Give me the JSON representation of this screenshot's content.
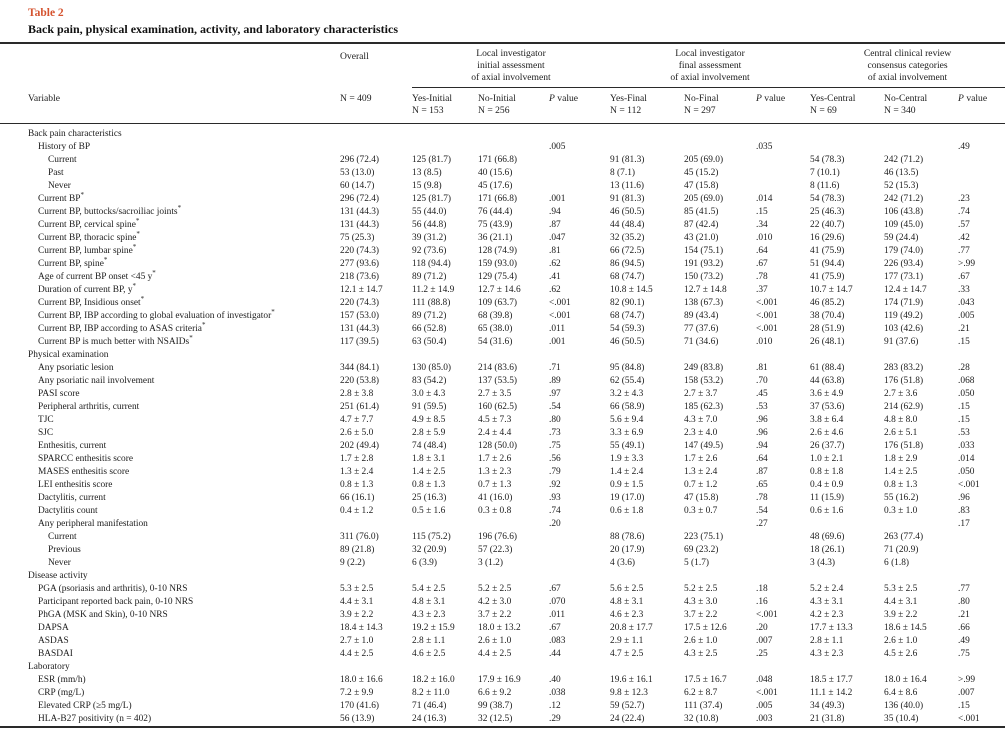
{
  "table": {
    "label": "Table 2",
    "title": "Back pain, physical examination, activity, and laboratory characteristics",
    "accent_color": "#d5532f",
    "variable_label": "Variable",
    "overall": {
      "title": "Overall",
      "n": "N = 409"
    },
    "p_header": {
      "italic": "P",
      "rest": "value"
    },
    "groups": [
      {
        "lines": [
          "Local investigator",
          "initial assessment",
          "of axial involvement"
        ],
        "cols": [
          {
            "name": "Yes-Initial",
            "n": "N = 153"
          },
          {
            "name": "No-Initial",
            "n": "N = 256"
          }
        ]
      },
      {
        "lines": [
          "Local investigator",
          "final assessment",
          "of axial involvement"
        ],
        "cols": [
          {
            "name": "Yes-Final",
            "n": "N = 112"
          },
          {
            "name": "No-Final",
            "n": "N = 297"
          }
        ]
      },
      {
        "lines": [
          "Central clinical review",
          "consensus categories",
          "of axial involvement"
        ],
        "cols": [
          {
            "name": "Yes-Central",
            "n": "N = 69"
          },
          {
            "name": "No-Central",
            "n": "N = 340"
          }
        ]
      }
    ],
    "rows": [
      {
        "label": "Back pain characteristics",
        "indent": 0,
        "cells": [
          "",
          "",
          "",
          "",
          "",
          "",
          "",
          "",
          "",
          ""
        ]
      },
      {
        "label": "History of BP",
        "indent": 1,
        "cells": [
          "",
          "",
          "",
          ".005",
          "",
          "",
          ".035",
          "",
          "",
          ".49"
        ]
      },
      {
        "label": "Current",
        "indent": 2,
        "cells": [
          "296 (72.4)",
          "125 (81.7)",
          "171 (66.8)",
          "",
          "91 (81.3)",
          "205 (69.0)",
          "",
          "54 (78.3)",
          "242 (71.2)",
          ""
        ]
      },
      {
        "label": "Past",
        "indent": 2,
        "cells": [
          "53 (13.0)",
          "13 (8.5)",
          "40 (15.6)",
          "",
          "8 (7.1)",
          "45 (15.2)",
          "",
          "7 (10.1)",
          "46 (13.5)",
          ""
        ]
      },
      {
        "label": "Never",
        "indent": 2,
        "cells": [
          "60 (14.7)",
          "15 (9.8)",
          "45 (17.6)",
          "",
          "13 (11.6)",
          "47 (15.8)",
          "",
          "8 (11.6)",
          "52 (15.3)",
          ""
        ]
      },
      {
        "label": "Current BP",
        "sup": "*",
        "indent": 1,
        "cells": [
          "296 (72.4)",
          "125 (81.7)",
          "171 (66.8)",
          ".001",
          "91 (81.3)",
          "205 (69.0)",
          ".014",
          "54 (78.3)",
          "242 (71.2)",
          ".23"
        ]
      },
      {
        "label": "Current BP, buttocks/sacroiliac joints",
        "sup": "*",
        "indent": 1,
        "cells": [
          "131 (44.3)",
          "55 (44.0)",
          "76 (44.4)",
          ".94",
          "46 (50.5)",
          "85 (41.5)",
          ".15",
          "25 (46.3)",
          "106 (43.8)",
          ".74"
        ]
      },
      {
        "label": "Current BP, cervical spine",
        "sup": "*",
        "indent": 1,
        "cells": [
          "131 (44.3)",
          "56 (44.8)",
          "75 (43.9)",
          ".87",
          "44 (48.4)",
          "87 (42.4)",
          ".34",
          "22 (40.7)",
          "109 (45.0)",
          ".57"
        ]
      },
      {
        "label": "Current BP, thoracic spine",
        "sup": "*",
        "indent": 1,
        "cells": [
          "75 (25.3)",
          "39 (31.2)",
          "36 (21.1)",
          ".047",
          "32 (35.2)",
          "43 (21.0)",
          ".010",
          "16 (29.6)",
          "59 (24.4)",
          ".42"
        ]
      },
      {
        "label": "Current BP, lumbar spine",
        "sup": "*",
        "indent": 1,
        "cells": [
          "220 (74.3)",
          "92 (73.6)",
          "128 (74.9)",
          ".81",
          "66 (72.5)",
          "154 (75.1)",
          ".64",
          "41 (75.9)",
          "179 (74.0)",
          ".77"
        ]
      },
      {
        "label": "Current BP, spine",
        "sup": "*",
        "indent": 1,
        "cells": [
          "277 (93.6)",
          "118 (94.4)",
          "159 (93.0)",
          ".62",
          "86 (94.5)",
          "191 (93.2)",
          ".67",
          "51 (94.4)",
          "226 (93.4)",
          ">.99"
        ]
      },
      {
        "label": "Age of current BP onset <45 y",
        "sup": "*",
        "indent": 1,
        "cells": [
          "218 (73.6)",
          "89 (71.2)",
          "129 (75.4)",
          ".41",
          "68 (74.7)",
          "150 (73.2)",
          ".78",
          "41 (75.9)",
          "177 (73.1)",
          ".67"
        ]
      },
      {
        "label": "Duration of current BP, y",
        "sup": "*",
        "indent": 1,
        "cells": [
          "12.1 ± 14.7",
          "11.2 ± 14.9",
          "12.7 ± 14.6",
          ".62",
          "10.8 ± 14.5",
          "12.7 ± 14.8",
          ".37",
          "10.7 ± 14.7",
          "12.4 ± 14.7",
          ".33"
        ]
      },
      {
        "label": "Current BP, Insidious onset",
        "sup": "*",
        "indent": 1,
        "cells": [
          "220 (74.3)",
          "111 (88.8)",
          "109 (63.7)",
          "<.001",
          "82 (90.1)",
          "138 (67.3)",
          "<.001",
          "46 (85.2)",
          "174 (71.9)",
          ".043"
        ]
      },
      {
        "label": "Current BP, IBP according to global evaluation of investigator",
        "sup": "*",
        "indent": 1,
        "cells": [
          "157 (53.0)",
          "89 (71.2)",
          "68 (39.8)",
          "<.001",
          "68 (74.7)",
          "89 (43.4)",
          "<.001",
          "38 (70.4)",
          "119 (49.2)",
          ".005"
        ]
      },
      {
        "label": "Current BP, IBP according to ASAS criteria",
        "sup": "*",
        "indent": 1,
        "cells": [
          "131 (44.3)",
          "66 (52.8)",
          "65 (38.0)",
          ".011",
          "54 (59.3)",
          "77 (37.6)",
          "<.001",
          "28 (51.9)",
          "103 (42.6)",
          ".21"
        ]
      },
      {
        "label": "Current BP is much better with NSAIDs",
        "sup": "*",
        "indent": 1,
        "cells": [
          "117 (39.5)",
          "63 (50.4)",
          "54 (31.6)",
          ".001",
          "46 (50.5)",
          "71 (34.6)",
          ".010",
          "26 (48.1)",
          "91 (37.6)",
          ".15"
        ]
      },
      {
        "label": "Physical examination",
        "indent": 0,
        "cells": [
          "",
          "",
          "",
          "",
          "",
          "",
          "",
          "",
          "",
          ""
        ]
      },
      {
        "label": "Any psoriatic lesion",
        "indent": 1,
        "cells": [
          "344 (84.1)",
          "130 (85.0)",
          "214 (83.6)",
          ".71",
          "95 (84.8)",
          "249 (83.8)",
          ".81",
          "61 (88.4)",
          "283 (83.2)",
          ".28"
        ]
      },
      {
        "label": "Any psoriatic nail involvement",
        "indent": 1,
        "cells": [
          "220 (53.8)",
          "83 (54.2)",
          "137 (53.5)",
          ".89",
          "62 (55.4)",
          "158 (53.2)",
          ".70",
          "44 (63.8)",
          "176 (51.8)",
          ".068"
        ]
      },
      {
        "label": "PASI score",
        "indent": 1,
        "cells": [
          "2.8 ± 3.8",
          "3.0 ± 4.3",
          "2.7 ± 3.5",
          ".97",
          "3.2 ± 4.3",
          "2.7 ± 3.7",
          ".45",
          "3.6 ± 4.9",
          "2.7 ± 3.6",
          ".050"
        ]
      },
      {
        "label": "Peripheral arthritis, current",
        "indent": 1,
        "cells": [
          "251 (61.4)",
          "91 (59.5)",
          "160 (62.5)",
          ".54",
          "66 (58.9)",
          "185 (62.3)",
          ".53",
          "37 (53.6)",
          "214 (62.9)",
          ".15"
        ]
      },
      {
        "label": "TJC",
        "indent": 1,
        "cells": [
          "4.7 ± 7.7",
          "4.9 ± 8.5",
          "4.5 ± 7.3",
          ".80",
          "5.6 ± 9.4",
          "4.3 ± 7.0",
          ".96",
          "3.8 ± 6.4",
          "4.8 ± 8.0",
          ".15"
        ]
      },
      {
        "label": "SJC",
        "indent": 1,
        "cells": [
          "2.6 ± 5.0",
          "2.8 ± 5.9",
          "2.4 ± 4.4",
          ".73",
          "3.3 ± 6.9",
          "2.3 ± 4.0",
          ".96",
          "2.6 ± 4.6",
          "2.6 ± 5.1",
          ".53"
        ]
      },
      {
        "label": "Enthesitis, current",
        "indent": 1,
        "cells": [
          "202 (49.4)",
          "74 (48.4)",
          "128 (50.0)",
          ".75",
          "55 (49.1)",
          "147 (49.5)",
          ".94",
          "26 (37.7)",
          "176 (51.8)",
          ".033"
        ]
      },
      {
        "label": "SPARCC enthesitis score",
        "indent": 1,
        "cells": [
          "1.7 ± 2.8",
          "1.8 ± 3.1",
          "1.7 ± 2.6",
          ".56",
          "1.9 ± 3.3",
          "1.7 ± 2.6",
          ".64",
          "1.0 ± 2.1",
          "1.8 ± 2.9",
          ".014"
        ]
      },
      {
        "label": "MASES enthesitis score",
        "indent": 1,
        "cells": [
          "1.3 ± 2.4",
          "1.4 ± 2.5",
          "1.3 ± 2.3",
          ".79",
          "1.4 ± 2.4",
          "1.3 ± 2.4",
          ".87",
          "0.8 ± 1.8",
          "1.4 ± 2.5",
          ".050"
        ]
      },
      {
        "label": "LEI enthesitis score",
        "indent": 1,
        "cells": [
          "0.8 ± 1.3",
          "0.8 ± 1.3",
          "0.7 ± 1.3",
          ".92",
          "0.9 ± 1.5",
          "0.7 ± 1.2",
          ".65",
          "0.4 ± 0.9",
          "0.8 ± 1.3",
          "<.001"
        ]
      },
      {
        "label": "Dactylitis, current",
        "indent": 1,
        "cells": [
          "66 (16.1)",
          "25 (16.3)",
          "41 (16.0)",
          ".93",
          "19 (17.0)",
          "47 (15.8)",
          ".78",
          "11 (15.9)",
          "55 (16.2)",
          ".96"
        ]
      },
      {
        "label": "Dactylitis count",
        "indent": 1,
        "cells": [
          "0.4 ± 1.2",
          "0.5 ± 1.6",
          "0.3 ± 0.8",
          ".74",
          "0.6 ± 1.8",
          "0.3 ± 0.7",
          ".54",
          "0.6 ± 1.6",
          "0.3 ± 1.0",
          ".83"
        ]
      },
      {
        "label": "Any peripheral manifestation",
        "indent": 1,
        "cells": [
          "",
          "",
          "",
          ".20",
          "",
          "",
          ".27",
          "",
          "",
          ".17"
        ]
      },
      {
        "label": "Current",
        "indent": 2,
        "cells": [
          "311 (76.0)",
          "115 (75.2)",
          "196 (76.6)",
          "",
          "88 (78.6)",
          "223 (75.1)",
          "",
          "48 (69.6)",
          "263 (77.4)",
          ""
        ]
      },
      {
        "label": "Previous",
        "indent": 2,
        "cells": [
          "89 (21.8)",
          "32 (20.9)",
          "57 (22.3)",
          "",
          "20 (17.9)",
          "69 (23.2)",
          "",
          "18 (26.1)",
          "71 (20.9)",
          ""
        ]
      },
      {
        "label": "Never",
        "indent": 2,
        "cells": [
          "9 (2.2)",
          "6 (3.9)",
          "3 (1.2)",
          "",
          "4 (3.6)",
          "5 (1.7)",
          "",
          "3 (4.3)",
          "6 (1.8)",
          ""
        ]
      },
      {
        "label": "Disease activity",
        "indent": 0,
        "cells": [
          "",
          "",
          "",
          "",
          "",
          "",
          "",
          "",
          "",
          ""
        ]
      },
      {
        "label": "PGA (psoriasis and arthritis), 0-10 NRS",
        "indent": 1,
        "cells": [
          "5.3 ± 2.5",
          "5.4 ± 2.5",
          "5.2 ± 2.5",
          ".67",
          "5.6 ± 2.5",
          "5.2 ± 2.5",
          ".18",
          "5.2 ± 2.4",
          "5.3 ± 2.5",
          ".77"
        ]
      },
      {
        "label": "Participant reported back pain, 0-10 NRS",
        "indent": 1,
        "cells": [
          "4.4 ± 3.1",
          "4.8 ± 3.1",
          "4.2 ± 3.0",
          ".070",
          "4.8 ± 3.1",
          "4.3 ± 3.0",
          ".16",
          "4.3 ± 3.1",
          "4.4 ± 3.1",
          ".80"
        ]
      },
      {
        "label": "PhGA (MSK and Skin), 0-10 NRS",
        "indent": 1,
        "cells": [
          "3.9 ± 2.2",
          "4.3 ± 2.3",
          "3.7 ± 2.2",
          ".011",
          "4.6 ± 2.3",
          "3.7 ± 2.2",
          "<.001",
          "4.2 ± 2.3",
          "3.9 ± 2.2",
          ".21"
        ]
      },
      {
        "label": "DAPSA",
        "indent": 1,
        "cells": [
          "18.4 ± 14.3",
          "19.2 ± 15.9",
          "18.0 ± 13.2",
          ".67",
          "20.8 ± 17.7",
          "17.5 ± 12.6",
          ".20",
          "17.7 ± 13.3",
          "18.6 ± 14.5",
          ".66"
        ]
      },
      {
        "label": "ASDAS",
        "indent": 1,
        "cells": [
          "2.7 ± 1.0",
          "2.8 ± 1.1",
          "2.6 ± 1.0",
          ".083",
          "2.9 ± 1.1",
          "2.6 ± 1.0",
          ".007",
          "2.8 ± 1.1",
          "2.6 ± 1.0",
          ".49"
        ]
      },
      {
        "label": "BASDAI",
        "indent": 1,
        "cells": [
          "4.4 ± 2.5",
          "4.6 ± 2.5",
          "4.4 ± 2.5",
          ".44",
          "4.7 ± 2.5",
          "4.3 ± 2.5",
          ".25",
          "4.3 ± 2.3",
          "4.5 ± 2.6",
          ".75"
        ]
      },
      {
        "label": "Laboratory",
        "indent": 0,
        "cells": [
          "",
          "",
          "",
          "",
          "",
          "",
          "",
          "",
          "",
          ""
        ]
      },
      {
        "label": "ESR (mm/h)",
        "indent": 1,
        "cells": [
          "18.0 ± 16.6",
          "18.2 ± 16.0",
          "17.9 ± 16.9",
          ".40",
          "19.6 ± 16.1",
          "17.5 ± 16.7",
          ".048",
          "18.5 ± 17.7",
          "18.0 ± 16.4",
          ">.99"
        ]
      },
      {
        "label": "CRP (mg/L)",
        "indent": 1,
        "cells": [
          "7.2 ± 9.9",
          "8.2 ± 11.0",
          "6.6 ± 9.2",
          ".038",
          "9.8 ± 12.3",
          "6.2 ± 8.7",
          "<.001",
          "11.1 ± 14.2",
          "6.4 ± 8.6",
          ".007"
        ]
      },
      {
        "label": "Elevated CRP (≥5 mg/L)",
        "indent": 1,
        "cells": [
          "170 (41.6)",
          "71 (46.4)",
          "99 (38.7)",
          ".12",
          "59 (52.7)",
          "111 (37.4)",
          ".005",
          "34 (49.3)",
          "136 (40.0)",
          ".15"
        ]
      },
      {
        "label": "HLA-B27 positivity (n = 402)",
        "indent": 1,
        "cells": [
          "56 (13.9)",
          "24 (16.3)",
          "32 (12.5)",
          ".29",
          "24 (22.4)",
          "32 (10.8)",
          ".003",
          "21 (31.8)",
          "35 (10.4)",
          "<.001"
        ]
      }
    ]
  }
}
